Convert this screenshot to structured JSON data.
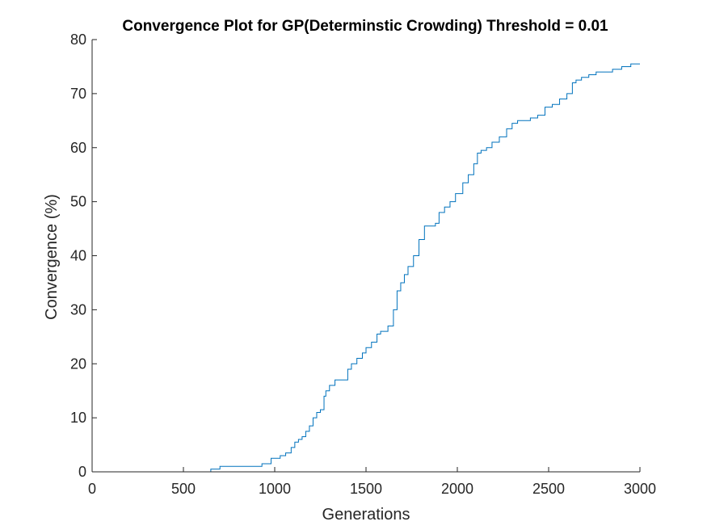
{
  "chart_data": {
    "type": "line",
    "title": "Convergence Plot for GP(Determinstic Crowding) Threshold = 0.01",
    "xlabel": "Generations",
    "ylabel": "Convergence (%)",
    "xlim": [
      0,
      3000
    ],
    "ylim": [
      0,
      80
    ],
    "xticks": [
      0,
      500,
      1000,
      1500,
      2000,
      2500,
      3000
    ],
    "yticks": [
      0,
      10,
      20,
      30,
      40,
      50,
      60,
      70,
      80
    ],
    "grid": false,
    "step": true,
    "colors": {
      "line": "#0072BD",
      "axis": "#262626"
    },
    "series": [
      {
        "x": [
          0,
          650,
          700,
          900,
          930,
          980,
          1030,
          1060,
          1090,
          1110,
          1130,
          1150,
          1170,
          1190,
          1210,
          1230,
          1250,
          1270,
          1280,
          1300,
          1330,
          1360,
          1400,
          1420,
          1450,
          1480,
          1500,
          1530,
          1560,
          1580,
          1620,
          1650,
          1670,
          1690,
          1710,
          1730,
          1760,
          1790,
          1820,
          1840,
          1880,
          1900,
          1930,
          1960,
          1990,
          2030,
          2060,
          2090,
          2110,
          2130,
          2160,
          2190,
          2230,
          2270,
          2300,
          2330,
          2350,
          2400,
          2440,
          2480,
          2520,
          2560,
          2600,
          2630,
          2650,
          2680,
          2720,
          2760,
          2800,
          2850,
          2900,
          2950,
          3000
        ],
        "y": [
          0,
          0.5,
          1,
          1,
          1.5,
          2.5,
          3,
          3.5,
          4.5,
          5.5,
          6,
          6.5,
          7.5,
          8.5,
          10,
          11,
          11.5,
          14,
          15,
          16,
          17,
          17,
          19,
          20,
          21,
          22,
          23,
          24,
          25.5,
          26,
          27,
          30,
          33.5,
          35,
          36.5,
          38,
          40,
          43,
          45.5,
          45.5,
          46,
          48,
          49,
          50,
          51.5,
          53.5,
          55,
          57,
          59,
          59.5,
          60,
          61,
          62,
          63.5,
          64.5,
          65,
          65,
          65.5,
          66,
          67.5,
          68,
          69,
          70,
          72,
          72.5,
          73,
          73.5,
          74,
          74,
          74.5,
          75,
          75.5,
          75.5
        ]
      }
    ]
  }
}
